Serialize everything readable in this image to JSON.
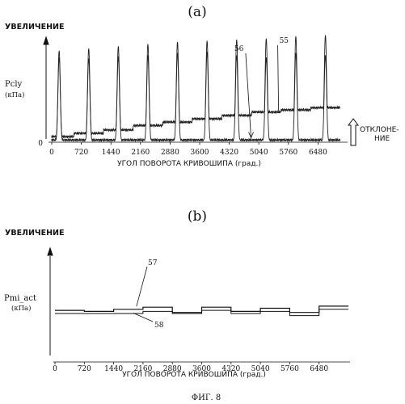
{
  "figure_caption": "ФИГ. 8",
  "chart_data": [
    {
      "panel_label": "(a)",
      "type": "line",
      "ylabel": "Pcly",
      "yunit": "(кПа)",
      "increase_label": "УВЕЛИЧЕНИЕ",
      "xlabel": "УГОЛ ПОВОРОТА КРИВОШИПА (град.)",
      "xlim": [
        0,
        7200
      ],
      "xticks": [
        0,
        720,
        1440,
        2160,
        2880,
        3600,
        4320,
        5040,
        5760,
        6480
      ],
      "ytick_label": "0",
      "deviation_label": [
        "ОТКЛОНЕ-",
        "НИЕ"
      ],
      "peak_positions": [
        180,
        900,
        1620,
        2340,
        3060,
        3780,
        4500,
        5220,
        5940,
        6660
      ],
      "series": [
        {
          "callout": "55",
          "baseline_level": [
            0.05,
            0.08,
            0.11,
            0.15,
            0.18,
            0.21,
            0.24,
            0.27,
            0.29,
            0.31
          ],
          "peak_level": [
            0.82,
            0.84,
            0.86,
            0.88,
            0.9,
            0.91,
            0.92,
            0.93,
            0.95,
            0.96
          ]
        },
        {
          "callout": "56",
          "baseline_level": [
            0.02,
            0.02,
            0.02,
            0.02,
            0.02,
            0.02,
            0.02,
            0.02,
            0.02,
            0.02
          ],
          "peak_level": [
            0.76,
            0.75,
            0.77,
            0.78,
            0.8,
            0.81,
            0.78,
            0.76,
            0.8,
            0.78
          ]
        }
      ]
    },
    {
      "panel_label": "(b)",
      "type": "line",
      "ylabel": "Pmi_act",
      "yunit": "(кПа)",
      "increase_label": "УВЕЛИЧЕНИЕ",
      "xlabel": "УГОЛ ПОВОРОТА КРИВОШИПА (град.)",
      "xlim": [
        0,
        7200
      ],
      "xticks": [
        0,
        720,
        1440,
        2160,
        2880,
        3600,
        4320,
        5040,
        5760,
        6480
      ],
      "steps": [
        0,
        720,
        1440,
        2160,
        2880,
        3600,
        4320,
        5040,
        5760,
        6480,
        7200
      ],
      "series": [
        {
          "callout": "57",
          "values": [
            0.43,
            0.42,
            0.44,
            0.46,
            0.41,
            0.46,
            0.42,
            0.45,
            0.41,
            0.47
          ]
        },
        {
          "callout": "58",
          "values": [
            0.4,
            0.4,
            0.4,
            0.42,
            0.4,
            0.43,
            0.4,
            0.42,
            0.38,
            0.44
          ]
        }
      ]
    }
  ]
}
